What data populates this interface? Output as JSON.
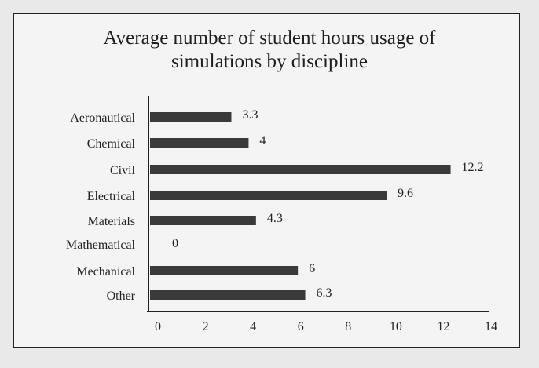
{
  "chart_data": {
    "type": "bar",
    "orientation": "horizontal",
    "title": "Average number of student hours usage of simulations by discipline",
    "title_lines": [
      "Average number of student hours usage of",
      "simulations by discipline"
    ],
    "categories": [
      "Aeronautical",
      "Chemical",
      "Civil",
      "Electrical",
      "Materials",
      "Mathematical",
      "Mechanical",
      "Other"
    ],
    "values": [
      3.3,
      4,
      12.2,
      9.6,
      4.3,
      0,
      6,
      6.3
    ],
    "data_labels": [
      "3.3",
      "4",
      "12.2",
      "9.6",
      "4.3",
      "0",
      "6",
      "6.3"
    ],
    "xlim": [
      0,
      14
    ],
    "xticks": [
      "0",
      "2",
      "4",
      "6",
      "8",
      "10",
      "12",
      "14"
    ],
    "xlabel": "",
    "ylabel": "",
    "grid": false,
    "bar_color": "#3a3a3a"
  }
}
